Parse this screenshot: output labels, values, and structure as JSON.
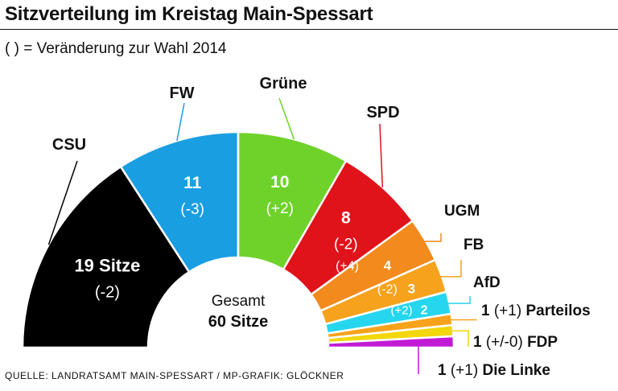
{
  "title": "Sitzverteilung im Kreistag Main-Spessart",
  "subtitle": "( ) = Veränderung zur Wahl 2014",
  "source": "QUELLE: LANDRATSAMT MAIN-SPESSART / MP-GRAFIK: GLÖCKNER",
  "center_label": {
    "line1": "Gesamt",
    "line2": "60 Sitze"
  },
  "chart_data": {
    "type": "pie",
    "subtype": "parliament-semicircle",
    "title": "Sitzverteilung im Kreistag Main-Spessart",
    "total_label": "60 Sitze",
    "series": [
      {
        "name": "CSU",
        "seats": 19,
        "value_label": "19 Sitze",
        "change": "(-2)",
        "color": "#000000"
      },
      {
        "name": "FW",
        "seats": 11,
        "value_label": "11",
        "change": "(-3)",
        "color": "#1a9ee2"
      },
      {
        "name": "Grüne",
        "seats": 10,
        "value_label": "10",
        "change": "(+2)",
        "color": "#6fd22a"
      },
      {
        "name": "SPD",
        "seats": 8,
        "value_label": "8",
        "change": "(-2)",
        "color": "#e0131b"
      },
      {
        "name": "UGM",
        "seats": 4,
        "value_label": "4",
        "change": "(+4)",
        "color": "#f28a1d"
      },
      {
        "name": "FB",
        "seats": 3,
        "value_label": "3",
        "change": "(-2)",
        "color": "#f6a21c"
      },
      {
        "name": "AfD",
        "seats": 2,
        "value_label": "2",
        "change": "(+2)",
        "color": "#25d6ee"
      },
      {
        "name": "Parteilos",
        "seats": 1,
        "value_label": "1",
        "change": "(+1)",
        "color": "#f7a21b"
      },
      {
        "name": "FDP",
        "seats": 1,
        "value_label": "1",
        "change": "(+/-0)",
        "color": "#f2d70c"
      },
      {
        "name": "Die Linke",
        "seats": 1,
        "value_label": "1",
        "change": "(+1)",
        "color": "#c11bd6"
      }
    ]
  }
}
